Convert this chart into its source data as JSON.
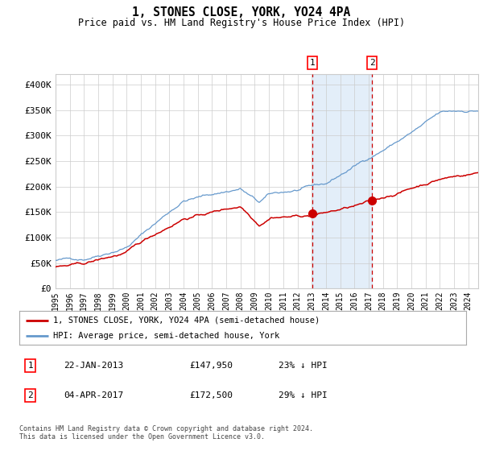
{
  "title": "1, STONES CLOSE, YORK, YO24 4PA",
  "subtitle": "Price paid vs. HM Land Registry's House Price Index (HPI)",
  "hpi_color": "#6699cc",
  "price_color": "#cc0000",
  "background_color": "#ffffff",
  "grid_color": "#cccccc",
  "ylim": [
    0,
    420000
  ],
  "yticks": [
    0,
    50000,
    100000,
    150000,
    200000,
    250000,
    300000,
    350000,
    400000
  ],
  "ytick_labels": [
    "£0",
    "£50K",
    "£100K",
    "£150K",
    "£200K",
    "£250K",
    "£300K",
    "£350K",
    "£400K"
  ],
  "sale1_date_label": "22-JAN-2013",
  "sale1_price": 147950,
  "sale1_pct": "23%",
  "sale2_date_label": "04-APR-2017",
  "sale2_price": 172500,
  "sale2_pct": "29%",
  "legend_line1": "1, STONES CLOSE, YORK, YO24 4PA (semi-detached house)",
  "legend_line2": "HPI: Average price, semi-detached house, York",
  "footer": "Contains HM Land Registry data © Crown copyright and database right 2024.\nThis data is licensed under the Open Government Licence v3.0.",
  "sale1_x": 2013.06,
  "sale2_x": 2017.25,
  "xstart": 1995.0,
  "xend": 2024.7
}
